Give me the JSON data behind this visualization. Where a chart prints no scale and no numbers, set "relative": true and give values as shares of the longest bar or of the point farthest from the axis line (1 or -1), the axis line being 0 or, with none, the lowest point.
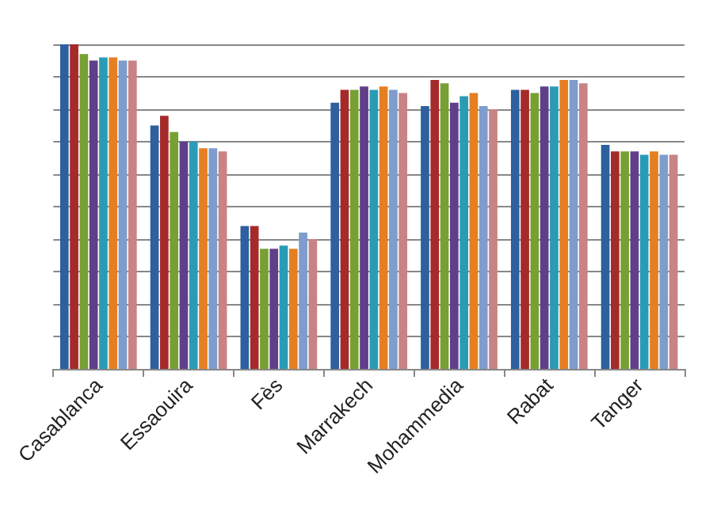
{
  "chart_data": {
    "type": "bar",
    "relative": true,
    "grid": "y",
    "categories": [
      "Casablanca",
      "Essaouira",
      "Fès",
      "Marrakech",
      "Mohammedia",
      "Rabat",
      "Tanger"
    ],
    "series": [
      {
        "color": "#2e5f9e",
        "values": [
          1,
          0.75,
          0.44,
          0.82,
          0.81,
          0.86,
          0.69
        ]
      },
      {
        "color": "#a52a2a",
        "values": [
          1,
          0.78,
          0.44,
          0.86,
          0.89,
          0.86,
          0.67
        ]
      },
      {
        "color": "#77a033",
        "values": [
          0.97,
          0.73,
          0.37,
          0.86,
          0.88,
          0.85,
          0.67
        ]
      },
      {
        "color": "#5f3f8a",
        "values": [
          0.95,
          0.7,
          0.37,
          0.87,
          0.82,
          0.87,
          0.67
        ]
      },
      {
        "color": "#2a9bb5",
        "values": [
          0.96,
          0.7,
          0.38,
          0.86,
          0.84,
          0.87,
          0.66
        ]
      },
      {
        "color": "#e57f22",
        "values": [
          0.96,
          0.68,
          0.37,
          0.87,
          0.85,
          0.89,
          0.67
        ]
      },
      {
        "color": "#7e9ccc",
        "values": [
          0.95,
          0.68,
          0.42,
          0.86,
          0.81,
          0.89,
          0.66
        ]
      },
      {
        "color": "#c88385",
        "values": [
          0.95,
          0.67,
          0.4,
          0.85,
          0.8,
          0.88,
          0.66
        ]
      }
    ]
  }
}
